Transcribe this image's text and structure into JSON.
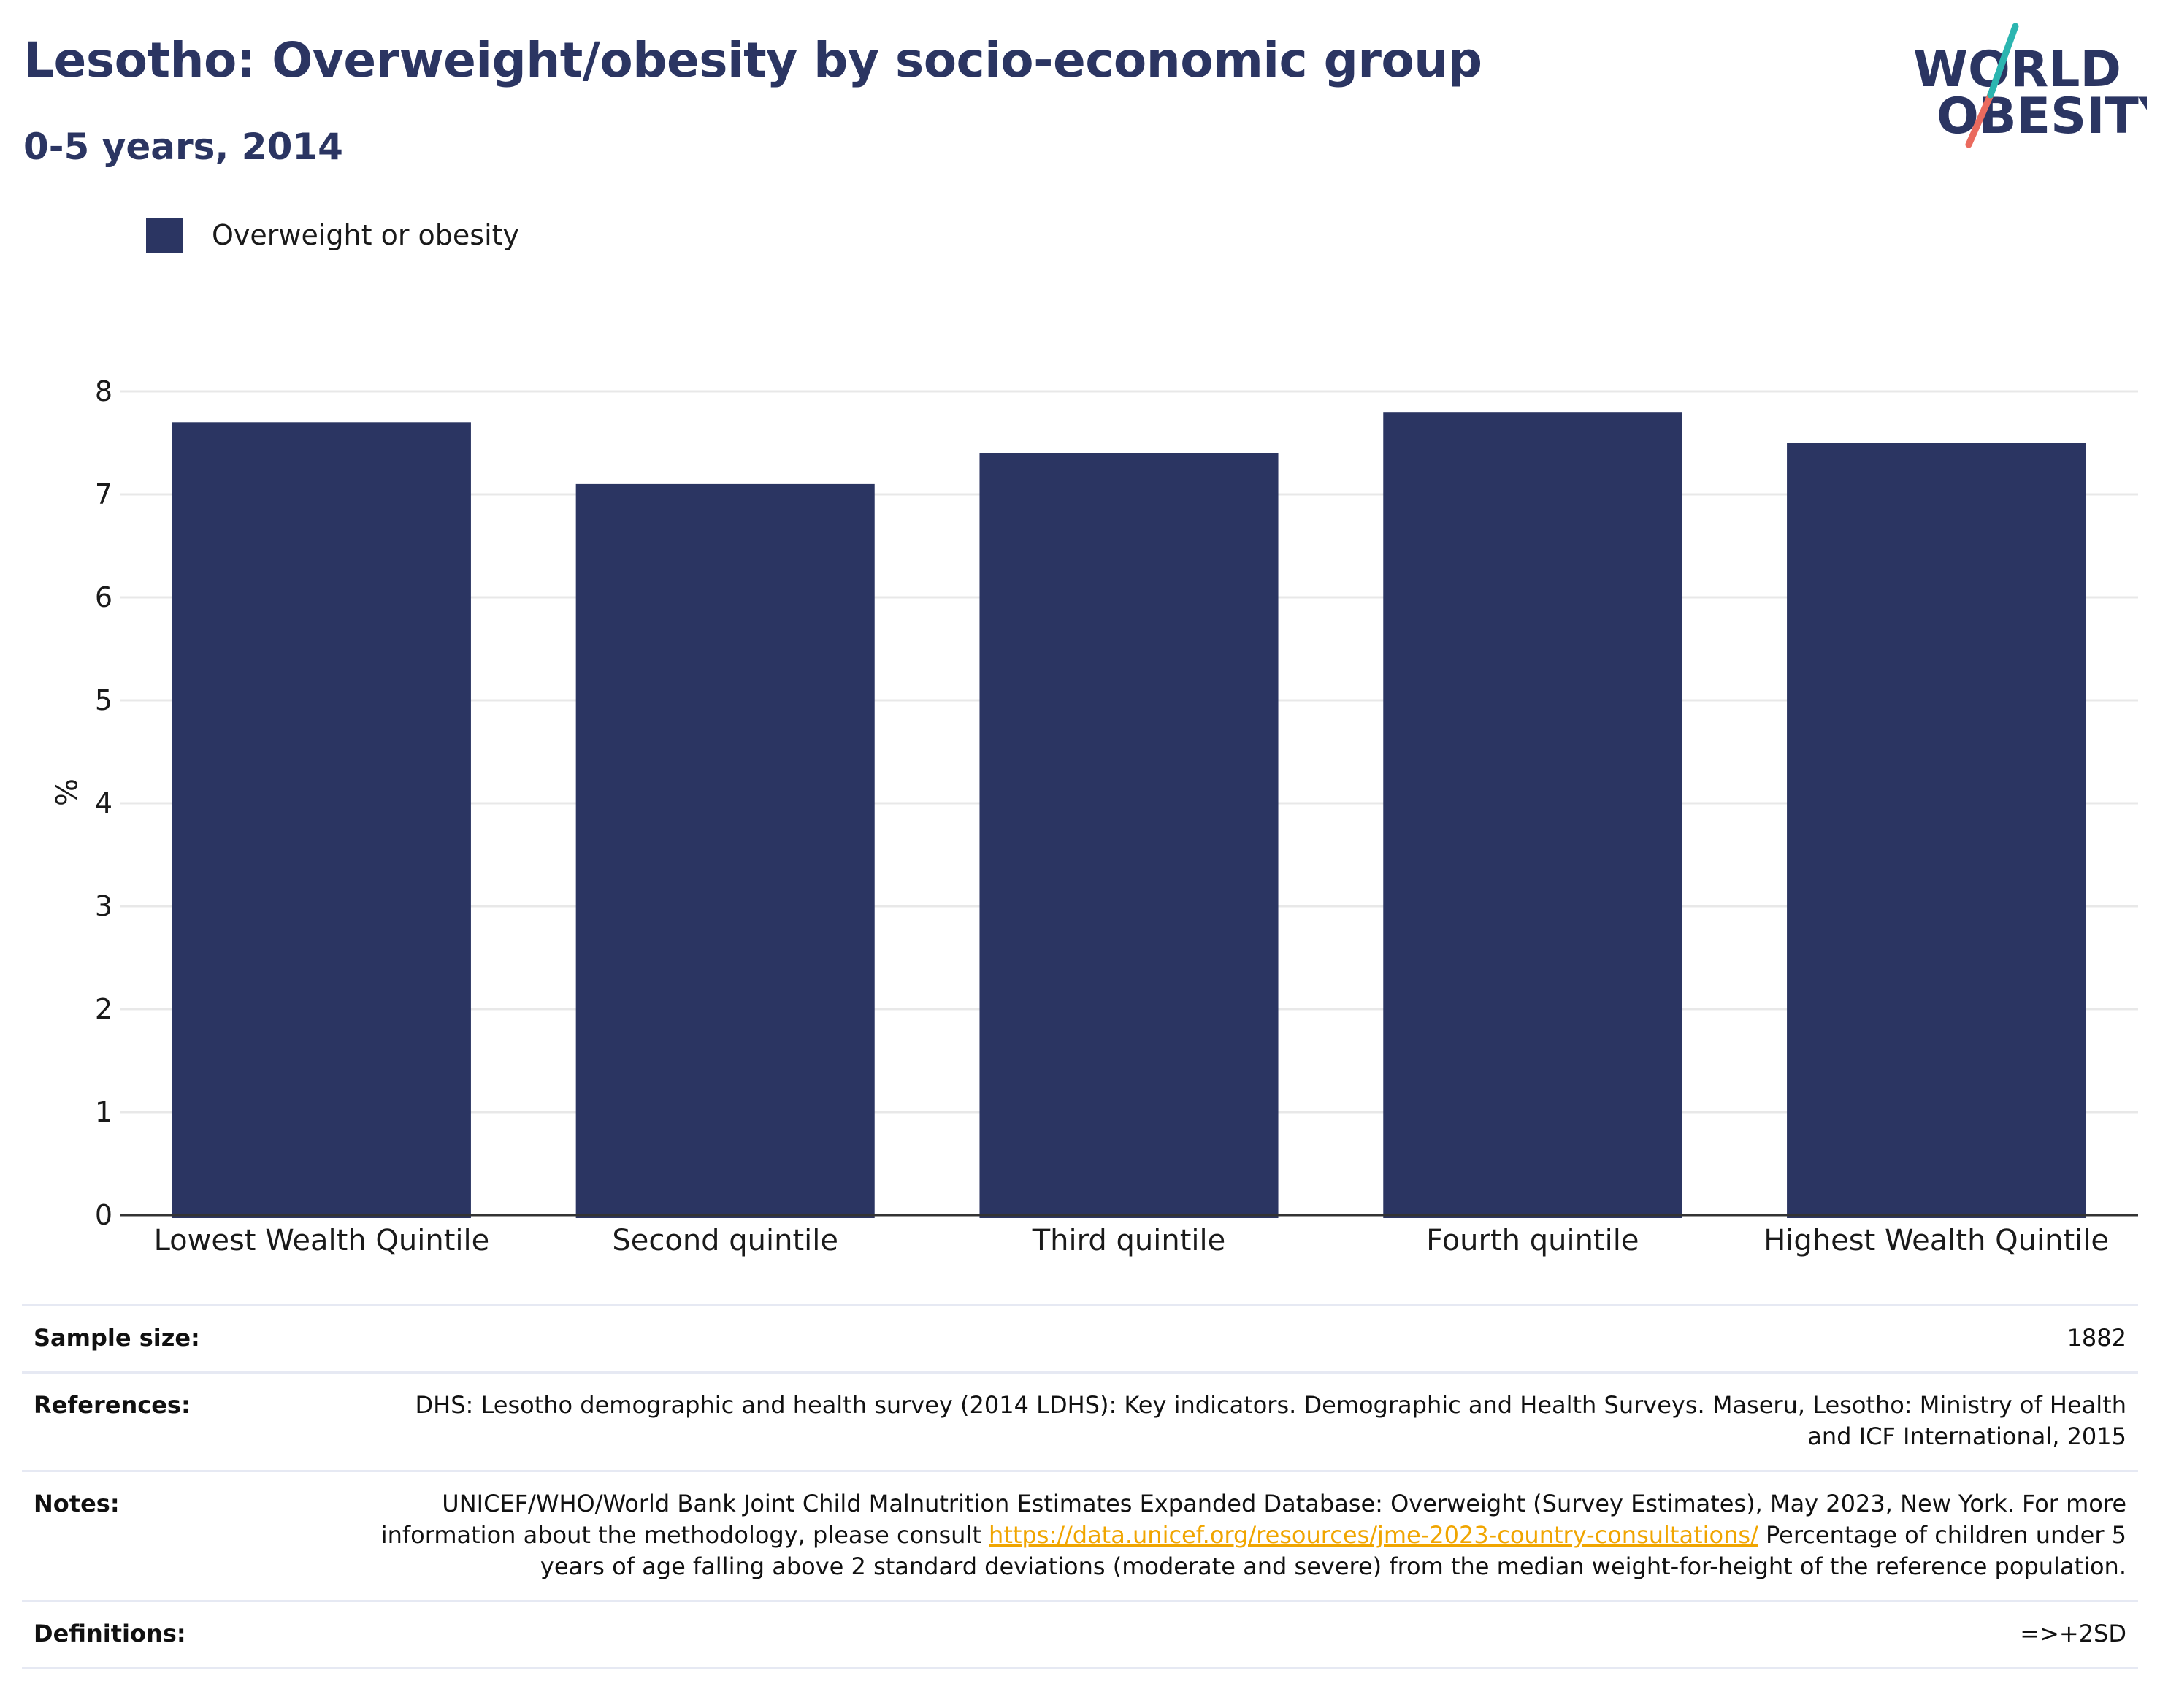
{
  "header": {
    "title": "Lesotho: Overweight/obesity by socio-economic group",
    "subtitle": "0-5 years, 2014"
  },
  "logo": {
    "line1": "WORLD",
    "line2": "OBESITY",
    "colors": {
      "text": "#2b3562",
      "slash_top": "#2bb5b0",
      "slash_bottom": "#ea6a5e"
    }
  },
  "colors": {
    "bar": "#2b3562",
    "grid": "#e8e8e8",
    "axis": "#333333",
    "link": "#f0a500"
  },
  "chart_data": {
    "type": "bar",
    "title": "Lesotho: Overweight/obesity by socio-economic group",
    "subtitle": "0-5 years, 2014",
    "categories": [
      "Lowest Wealth Quintile",
      "Second quintile",
      "Third quintile",
      "Fourth quintile",
      "Highest Wealth Quintile"
    ],
    "series": [
      {
        "name": "Overweight or obesity",
        "values": [
          7.7,
          7.1,
          7.4,
          7.8,
          7.5
        ]
      }
    ],
    "xlabel": "",
    "ylabel": "%",
    "ylim": [
      0,
      8
    ],
    "yticks": [
      "0",
      "1",
      "2",
      "3",
      "4",
      "5",
      "6",
      "7",
      "8"
    ],
    "grid": true,
    "legend": "top-left"
  },
  "info": {
    "sample_size": {
      "label": "Sample size:",
      "value": "1882"
    },
    "references": {
      "label": "References:",
      "value": "DHS: Lesotho demographic and health survey (2014 LDHS): Key indicators. Demographic and Health Surveys. Maseru, Lesotho: Ministry of Health and ICF International, 2015"
    },
    "notes": {
      "label": "Notes:",
      "text_before_link": "UNICEF/WHO/World Bank Joint Child Malnutrition Estimates Expanded Database: Overweight (Survey Estimates), May 2023, New York. For more information about the methodology, please consult ",
      "link": "https://data.unicef.org/resources/jme-2023-country-consultations/",
      "text_after_link": " Percentage of children under 5 years of age falling above 2 standard deviations (moderate and severe) from the median weight-for-height of the reference population."
    },
    "definitions": {
      "label": "Definitions:",
      "value": "=>+2SD"
    }
  }
}
